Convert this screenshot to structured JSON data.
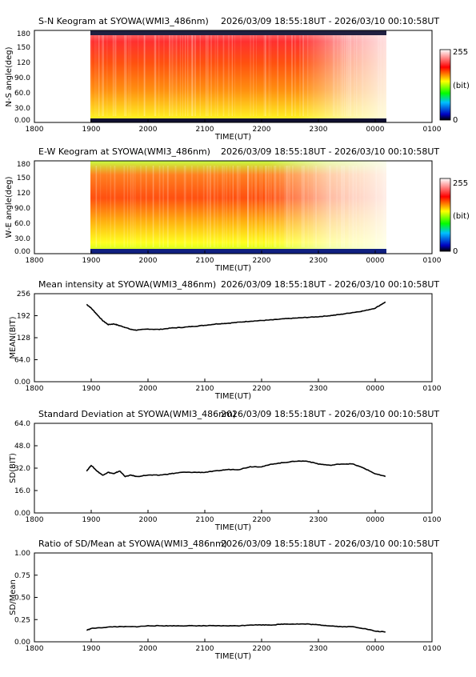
{
  "time_range": "2026/03/09 18:55:18UT - 2026/03/10 00:10:58UT",
  "x_axis": {
    "label": "TIME(UT)",
    "ticks": [
      "1800",
      "1900",
      "2000",
      "2100",
      "2200",
      "2300",
      "0000",
      "0100"
    ],
    "data_range_hours": [
      18.9217,
      24.1828
    ]
  },
  "keograms": [
    {
      "title": "S-N Keogram at SYOWA(WMI3_486nm)",
      "ylabel": "N-S angle(deg)",
      "yticks": [
        "180",
        "150",
        "120",
        "90.0",
        "60.0",
        "30.0",
        "0.00"
      ],
      "colorbar": {
        "max": "255",
        "unit": "(bit)",
        "min": "0"
      }
    },
    {
      "title": "E-W Keogram at SYOWA(WMI3_486nm)",
      "ylabel": "W-E angle(deg)",
      "yticks": [
        "180",
        "150",
        "120",
        "90.0",
        "60.0",
        "30.0",
        "0.00"
      ],
      "colorbar": {
        "max": "255",
        "unit": "(bit)",
        "min": "0"
      }
    }
  ],
  "chart_data": [
    {
      "type": "line",
      "title": "Mean intensity at SYOWA(WMI3_486nm)",
      "xlabel": "TIME(UT)",
      "ylabel": "MEAN(BIT)",
      "ylim": [
        0,
        256
      ],
      "yticks": [
        "256",
        "192",
        "128",
        "64.0",
        "0.00"
      ],
      "x": [
        18.92,
        19.0,
        19.1,
        19.2,
        19.3,
        19.4,
        19.5,
        19.6,
        19.7,
        19.8,
        20.0,
        20.2,
        20.4,
        20.6,
        20.8,
        21.0,
        21.2,
        21.4,
        21.6,
        21.8,
        22.0,
        22.2,
        22.4,
        22.6,
        22.8,
        23.0,
        23.2,
        23.4,
        23.6,
        23.8,
        24.0,
        24.18
      ],
      "series": [
        {
          "values": [
            225,
            214,
            196,
            178,
            166,
            168,
            163,
            158,
            152,
            150,
            153,
            152,
            156,
            158,
            161,
            164,
            168,
            170,
            173,
            176,
            178,
            180,
            183,
            185,
            187,
            189,
            192,
            196,
            201,
            206,
            214,
            232
          ]
        }
      ]
    },
    {
      "type": "line",
      "title": "Standard Deviation at SYOWA(WMI3_486nm)",
      "xlabel": "TIME(UT)",
      "ylabel": "SD(BIT)",
      "ylim": [
        0,
        64
      ],
      "yticks": [
        "64.0",
        "48.0",
        "32.0",
        "16.0",
        "0.00"
      ],
      "x": [
        18.92,
        19.0,
        19.1,
        19.2,
        19.3,
        19.4,
        19.5,
        19.6,
        19.7,
        19.8,
        20.0,
        20.2,
        20.4,
        20.6,
        20.8,
        21.0,
        21.2,
        21.4,
        21.6,
        21.8,
        22.0,
        22.2,
        22.4,
        22.6,
        22.8,
        23.0,
        23.2,
        23.4,
        23.6,
        23.8,
        24.0,
        24.18
      ],
      "series": [
        {
          "values": [
            30,
            34,
            30,
            27,
            29,
            28,
            30,
            26,
            27,
            26,
            27,
            27,
            28,
            29,
            29,
            29,
            30,
            31,
            31,
            33,
            33,
            35,
            36,
            37,
            37,
            35,
            34,
            35,
            35,
            32,
            28,
            26
          ]
        }
      ]
    },
    {
      "type": "line",
      "title": "Ratio of SD/Mean at SYOWA(WMI3_486nm)",
      "xlabel": "TIME(UT)",
      "ylabel": "SD/Mean",
      "ylim": [
        0,
        1
      ],
      "yticks": [
        "1.00",
        "0.75",
        "0.50",
        "0.25",
        "0.00"
      ],
      "x": [
        18.92,
        19.0,
        19.2,
        19.4,
        19.6,
        19.8,
        20.0,
        20.2,
        20.4,
        20.6,
        20.8,
        21.0,
        21.2,
        21.4,
        21.6,
        21.8,
        22.0,
        22.2,
        22.4,
        22.6,
        22.8,
        23.0,
        23.2,
        23.4,
        23.6,
        23.8,
        24.0,
        24.18
      ],
      "series": [
        {
          "values": [
            0.13,
            0.15,
            0.16,
            0.17,
            0.17,
            0.17,
            0.18,
            0.18,
            0.18,
            0.18,
            0.18,
            0.18,
            0.18,
            0.18,
            0.18,
            0.19,
            0.19,
            0.19,
            0.2,
            0.2,
            0.2,
            0.19,
            0.18,
            0.17,
            0.17,
            0.15,
            0.12,
            0.11
          ]
        }
      ]
    }
  ]
}
